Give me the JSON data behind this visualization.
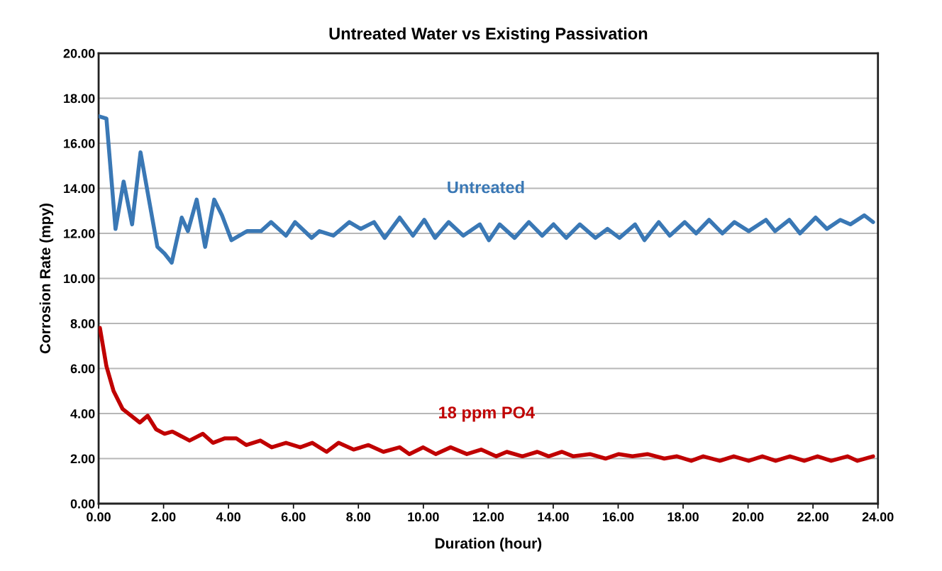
{
  "chart_data": {
    "type": "line",
    "title": "Untreated Water vs Existing Passivation",
    "xlabel": "Duration (hour)",
    "ylabel": "Corrosion Rate (mpy)",
    "xlim": [
      0,
      24
    ],
    "ylim": [
      0,
      20
    ],
    "xticks": [
      {
        "value": 0,
        "label": "0.00"
      },
      {
        "value": 2,
        "label": "2.00"
      },
      {
        "value": 4,
        "label": "4.00"
      },
      {
        "value": 6,
        "label": "6.00"
      },
      {
        "value": 8,
        "label": "8.00"
      },
      {
        "value": 10,
        "label": "10.00"
      },
      {
        "value": 12,
        "label": "12.00"
      },
      {
        "value": 14,
        "label": "14.00"
      },
      {
        "value": 16,
        "label": "16.00"
      },
      {
        "value": 18,
        "label": "18.00"
      },
      {
        "value": 20,
        "label": "20.00"
      },
      {
        "value": 22,
        "label": "22.00"
      },
      {
        "value": 24,
        "label": "24.00"
      }
    ],
    "yticks": [
      {
        "value": 0,
        "label": "0.00"
      },
      {
        "value": 2,
        "label": "2.00"
      },
      {
        "value": 4,
        "label": "4.00"
      },
      {
        "value": 6,
        "label": "6.00"
      },
      {
        "value": 8,
        "label": "8.00"
      },
      {
        "value": 10,
        "label": "10.00"
      },
      {
        "value": 12,
        "label": "12.00"
      },
      {
        "value": 14,
        "label": "14.00"
      },
      {
        "value": 16,
        "label": "16.00"
      },
      {
        "value": 18,
        "label": "18.00"
      },
      {
        "value": 20,
        "label": "20.00"
      }
    ],
    "grid": "y",
    "legend": false,
    "marker": "none",
    "line_style": "solid",
    "series": [
      {
        "name": "Untreated",
        "color": "#3a78b5",
        "x": [
          0,
          0.24,
          0.52,
          0.77,
          1.03,
          1.29,
          1.55,
          1.81,
          2.03,
          2.25,
          2.56,
          2.75,
          3.02,
          3.28,
          3.56,
          3.8,
          4.09,
          4.57,
          5.0,
          5.31,
          5.77,
          6.05,
          6.56,
          6.8,
          7.23,
          7.72,
          8.07,
          8.48,
          8.81,
          9.27,
          9.68,
          10.03,
          10.36,
          10.78,
          11.23,
          11.74,
          12.02,
          12.35,
          12.81,
          13.25,
          13.66,
          14.01,
          14.4,
          14.82,
          15.3,
          15.67,
          16.04,
          16.52,
          16.81,
          17.25,
          17.59,
          18.05,
          18.4,
          18.8,
          19.21,
          19.58,
          20.02,
          20.55,
          20.83,
          21.27,
          21.6,
          22.08,
          22.43,
          22.84,
          23.15,
          23.58,
          23.85
        ],
        "values": [
          17.2,
          17.1,
          12.2,
          14.3,
          12.4,
          15.6,
          13.5,
          11.4,
          11.1,
          10.7,
          12.7,
          12.1,
          13.5,
          11.4,
          13.5,
          12.8,
          11.7,
          12.1,
          12.1,
          12.5,
          11.9,
          12.5,
          11.8,
          12.1,
          11.9,
          12.5,
          12.2,
          12.5,
          11.8,
          12.7,
          11.9,
          12.6,
          11.8,
          12.5,
          11.9,
          12.4,
          11.7,
          12.4,
          11.8,
          12.5,
          11.9,
          12.4,
          11.8,
          12.4,
          11.8,
          12.2,
          11.8,
          12.4,
          11.7,
          12.5,
          11.9,
          12.5,
          12.0,
          12.6,
          12.0,
          12.5,
          12.1,
          12.6,
          12.1,
          12.6,
          12.0,
          12.7,
          12.2,
          12.6,
          12.4,
          12.8,
          12.5
        ]
      },
      {
        "name": "18 ppm PO4",
        "color": "#c00000",
        "x": [
          0.04,
          0.24,
          0.46,
          0.74,
          1.27,
          1.51,
          1.77,
          2.03,
          2.27,
          2.8,
          3.21,
          3.52,
          3.89,
          4.24,
          4.55,
          4.98,
          5.33,
          5.77,
          6.21,
          6.58,
          7.02,
          7.39,
          7.85,
          8.31,
          8.77,
          9.27,
          9.57,
          9.99,
          10.38,
          10.84,
          11.34,
          11.78,
          12.24,
          12.57,
          13.05,
          13.51,
          13.86,
          14.27,
          14.62,
          15.13,
          15.61,
          16.02,
          16.44,
          16.9,
          17.42,
          17.81,
          18.25,
          18.62,
          19.13,
          19.56,
          20.02,
          20.44,
          20.85,
          21.29,
          21.73,
          22.14,
          22.56,
          23.06,
          23.37,
          23.85
        ],
        "values": [
          7.8,
          6.1,
          5.0,
          4.2,
          3.6,
          3.9,
          3.3,
          3.1,
          3.2,
          2.8,
          3.1,
          2.7,
          2.9,
          2.9,
          2.6,
          2.8,
          2.5,
          2.7,
          2.5,
          2.7,
          2.3,
          2.7,
          2.4,
          2.6,
          2.3,
          2.5,
          2.2,
          2.5,
          2.2,
          2.5,
          2.2,
          2.4,
          2.1,
          2.3,
          2.1,
          2.3,
          2.1,
          2.3,
          2.1,
          2.2,
          2.0,
          2.2,
          2.1,
          2.2,
          2.0,
          2.1,
          1.9,
          2.1,
          1.9,
          2.1,
          1.9,
          2.1,
          1.9,
          2.1,
          1.9,
          2.1,
          1.9,
          2.1,
          1.9,
          2.1
        ]
      }
    ]
  }
}
